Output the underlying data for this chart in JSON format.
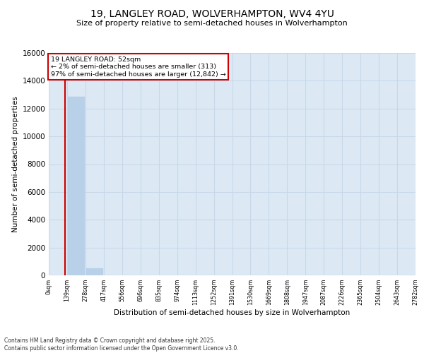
{
  "title1": "19, LANGLEY ROAD, WOLVERHAMPTON, WV4 4YU",
  "title2": "Size of property relative to semi-detached houses in Wolverhampton",
  "xlabel": "Distribution of semi-detached houses by size in Wolverhampton",
  "ylabel": "Number of semi-detached properties",
  "footnote": "Contains HM Land Registry data © Crown copyright and database right 2025.\nContains public sector information licensed under the Open Government Licence v3.0.",
  "bin_labels": [
    "0sqm",
    "139sqm",
    "278sqm",
    "417sqm",
    "556sqm",
    "696sqm",
    "835sqm",
    "974sqm",
    "1113sqm",
    "1252sqm",
    "1391sqm",
    "1530sqm",
    "1669sqm",
    "1808sqm",
    "1947sqm",
    "2087sqm",
    "2226sqm",
    "2365sqm",
    "2504sqm",
    "2643sqm",
    "2782sqm"
  ],
  "bar_heights": [
    0,
    12842,
    500,
    0,
    0,
    0,
    0,
    0,
    0,
    0,
    0,
    0,
    0,
    0,
    0,
    0,
    0,
    0,
    0,
    0
  ],
  "bar_color": "#b8d0e8",
  "bar_edge_color": "#b8d0e8",
  "property_bin_index": 0.38,
  "vline_color": "#cc0000",
  "annotation_text": "19 LANGLEY ROAD: 52sqm\n← 2% of semi-detached houses are smaller (313)\n97% of semi-detached houses are larger (12,842) →",
  "annotation_box_color": "#cc0000",
  "annotation_text_color": "#000000",
  "ylim": [
    0,
    16000
  ],
  "yticks": [
    0,
    2000,
    4000,
    6000,
    8000,
    10000,
    12000,
    14000,
    16000
  ],
  "background_color": "#dce9f5",
  "grid_color": "#c8d8e8",
  "fig_background": "#ffffff"
}
